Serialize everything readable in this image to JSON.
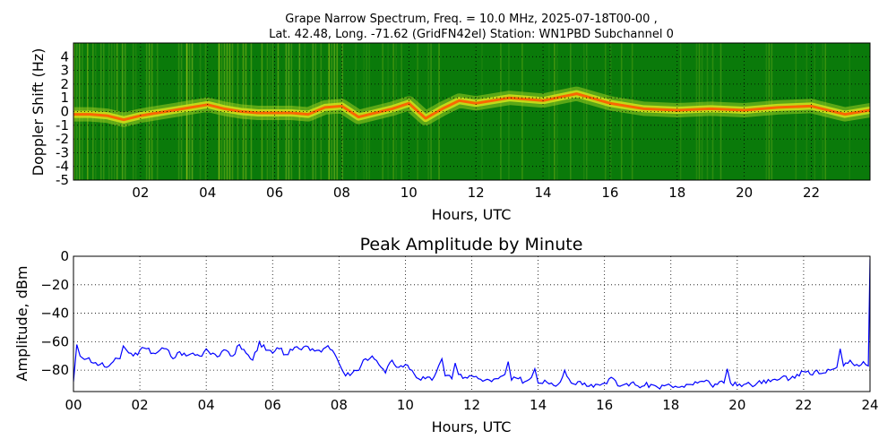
{
  "chart_data": [
    {
      "type": "heatmap",
      "title_line1": "Grape Narrow Spectrum, Freq. = 10.0 MHz, 2025-07-18T00-00 ,",
      "title_line2": "Lat.  42.48, Long. -71.62 (GridFN42el) Station: WN1PBD Subchannel 0",
      "xlabel": "Hours, UTC",
      "ylabel": "Doppler Shift (Hz)",
      "xlim": [
        0,
        23.75
      ],
      "ylim": [
        -5,
        5
      ],
      "x_ticks": [
        "02",
        "04",
        "06",
        "08",
        "10",
        "12",
        "14",
        "16",
        "18",
        "20",
        "22"
      ],
      "y_ticks": [
        "4",
        "3",
        "2",
        "1",
        "0",
        "-1",
        "-2",
        "-3",
        "-4",
        "-5"
      ],
      "grid": true,
      "colors": {
        "background": "#0a7a0a",
        "mid": "#d4e21a",
        "peak": "#ff5a00"
      },
      "doppler_trace": {
        "x": [
          0,
          0.5,
          1,
          1.5,
          2,
          2.5,
          3,
          3.5,
          4,
          4.5,
          5,
          5.5,
          6,
          6.5,
          7,
          7.5,
          8,
          8.5,
          9,
          9.5,
          10,
          10.5,
          11,
          11.5,
          12,
          13,
          14,
          15,
          16,
          17,
          18,
          19,
          20,
          21,
          22,
          23,
          23.75
        ],
        "y": [
          -0.2,
          -0.2,
          -0.3,
          -0.6,
          -0.3,
          -0.1,
          0.1,
          0.3,
          0.5,
          0.2,
          0.0,
          -0.1,
          -0.1,
          -0.1,
          -0.2,
          0.3,
          0.4,
          -0.4,
          -0.1,
          0.2,
          0.6,
          -0.5,
          0.2,
          0.8,
          0.6,
          1.0,
          0.8,
          1.3,
          0.6,
          0.2,
          0.1,
          0.2,
          0.1,
          0.3,
          0.4,
          -0.2,
          0.1
        ]
      }
    },
    {
      "type": "line",
      "title": "Peak Amplitude by Minute",
      "xlabel": "Hours, UTC",
      "ylabel": "Amplitude, dBm",
      "xlim": [
        0,
        24
      ],
      "ylim": [
        -95,
        0
      ],
      "x_ticks": [
        "00",
        "02",
        "04",
        "06",
        "08",
        "10",
        "12",
        "14",
        "16",
        "18",
        "20",
        "22",
        "24"
      ],
      "y_ticks": [
        "0",
        "−20",
        "−40",
        "−60",
        "−80"
      ],
      "grid": true,
      "line_color": "#0000ff",
      "series": [
        {
          "x": [
            0,
            0.1,
            0.2,
            0.4,
            0.6,
            0.8,
            1.0,
            1.2,
            1.4,
            1.5,
            1.6,
            1.8,
            2.0,
            2.2,
            2.4,
            2.6,
            2.8,
            3.0,
            3.2,
            3.4,
            3.6,
            3.8,
            4.0,
            4.2,
            4.4,
            4.6,
            4.8,
            5.0,
            5.2,
            5.4,
            5.6,
            5.8,
            6.0,
            6.2,
            6.4,
            6.6,
            6.8,
            7.0,
            7.2,
            7.4,
            7.6,
            7.8,
            8.0,
            8.1,
            8.2,
            8.4,
            8.6,
            8.8,
            9.0,
            9.2,
            9.4,
            9.6,
            9.8,
            10.0,
            10.2,
            10.4,
            10.6,
            10.8,
            11.0,
            11.1,
            11.2,
            11.4,
            11.5,
            11.6,
            11.8,
            12.0,
            12.2,
            12.4,
            12.6,
            12.8,
            13.0,
            13.1,
            13.2,
            13.4,
            13.6,
            13.8,
            13.9,
            14.0,
            14.2,
            14.4,
            14.6,
            14.8,
            15.0,
            15.2,
            15.4,
            15.6,
            15.8,
            16.0,
            16.2,
            16.4,
            16.6,
            16.8,
            17.0,
            17.2,
            17.4,
            17.6,
            17.8,
            18.0,
            18.2,
            18.4,
            18.6,
            18.8,
            19.0,
            19.2,
            19.4,
            19.6,
            19.7,
            19.8,
            20.0,
            20.2,
            20.4,
            20.6,
            20.8,
            21.0,
            21.2,
            21.4,
            21.6,
            21.8,
            22.0,
            22.2,
            22.4,
            22.6,
            22.8,
            23.0,
            23.1,
            23.2,
            23.4,
            23.6,
            23.8,
            23.95,
            24.0
          ],
          "values": [
            -88,
            -62,
            -70,
            -72,
            -75,
            -76,
            -78,
            -74,
            -72,
            -63,
            -66,
            -70,
            -66,
            -65,
            -68,
            -66,
            -65,
            -72,
            -67,
            -70,
            -68,
            -70,
            -65,
            -68,
            -70,
            -66,
            -70,
            -62,
            -68,
            -73,
            -60,
            -66,
            -68,
            -65,
            -69,
            -66,
            -65,
            -63,
            -65,
            -66,
            -64,
            -66,
            -75,
            -80,
            -84,
            -82,
            -80,
            -72,
            -70,
            -76,
            -82,
            -73,
            -78,
            -76,
            -80,
            -86,
            -86,
            -87,
            -77,
            -72,
            -84,
            -86,
            -75,
            -83,
            -85,
            -84,
            -86,
            -87,
            -88,
            -86,
            -83,
            -74,
            -87,
            -86,
            -88,
            -85,
            -79,
            -89,
            -87,
            -89,
            -90,
            -80,
            -89,
            -88,
            -89,
            -90,
            -90,
            -89,
            -85,
            -91,
            -90,
            -89,
            -91,
            -91,
            -90,
            -92,
            -91,
            -91,
            -92,
            -92,
            -90,
            -89,
            -88,
            -90,
            -90,
            -89,
            -79,
            -89,
            -91,
            -90,
            -90,
            -89,
            -87,
            -88,
            -87,
            -84,
            -86,
            -83,
            -81,
            -83,
            -80,
            -82,
            -80,
            -78,
            -65,
            -77,
            -73,
            -76,
            -74,
            -77,
            -2
          ]
        }
      ]
    }
  ]
}
